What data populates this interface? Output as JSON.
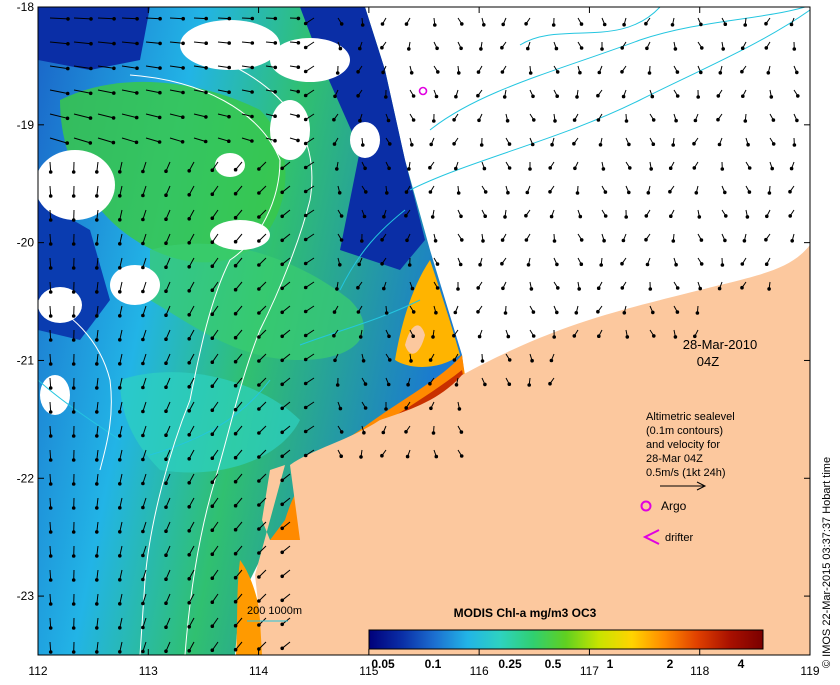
{
  "map": {
    "x_ticks": [
      "112",
      "113",
      "114",
      "115",
      "116",
      "117",
      "118",
      "119"
    ],
    "y_ticks": [
      "-18",
      "-19",
      "-20",
      "-21",
      "-22",
      "-23"
    ],
    "lon_range": [
      112,
      119
    ],
    "lat_range": [
      -23.5,
      -18
    ]
  },
  "annotations": {
    "date": "28-Mar-2010",
    "time": "04Z",
    "legend_lines": [
      "Altimetric sealevel",
      "(0.1m contours)",
      "and velocity for",
      "28-Mar 04Z",
      "0.5m/s (1kt 24h)"
    ],
    "argo_label": "Argo",
    "drifter_label": "drifter",
    "depth_label": "200  1000m",
    "credit": "© IMOS 22-Mar-2015 03:37:37 Hobart time"
  },
  "colorbar": {
    "title": "MODIS Chl-a mg/m3 OC3",
    "ticks": [
      "0.05",
      "0.1",
      "0.25",
      "0.5",
      "1",
      "2",
      "4"
    ],
    "colors": [
      "#00007a",
      "#0a2ea6",
      "#1c6fd0",
      "#22b4e6",
      "#2ed2c0",
      "#30d070",
      "#60d020",
      "#c8e400",
      "#ffd400",
      "#ff8a00",
      "#e04000",
      "#a81000",
      "#7a0000"
    ]
  },
  "colors": {
    "land": "#fcc89e",
    "contour_light": "#24c6e0",
    "contour_white": "#ffffff",
    "argo": "#e000e0"
  }
}
